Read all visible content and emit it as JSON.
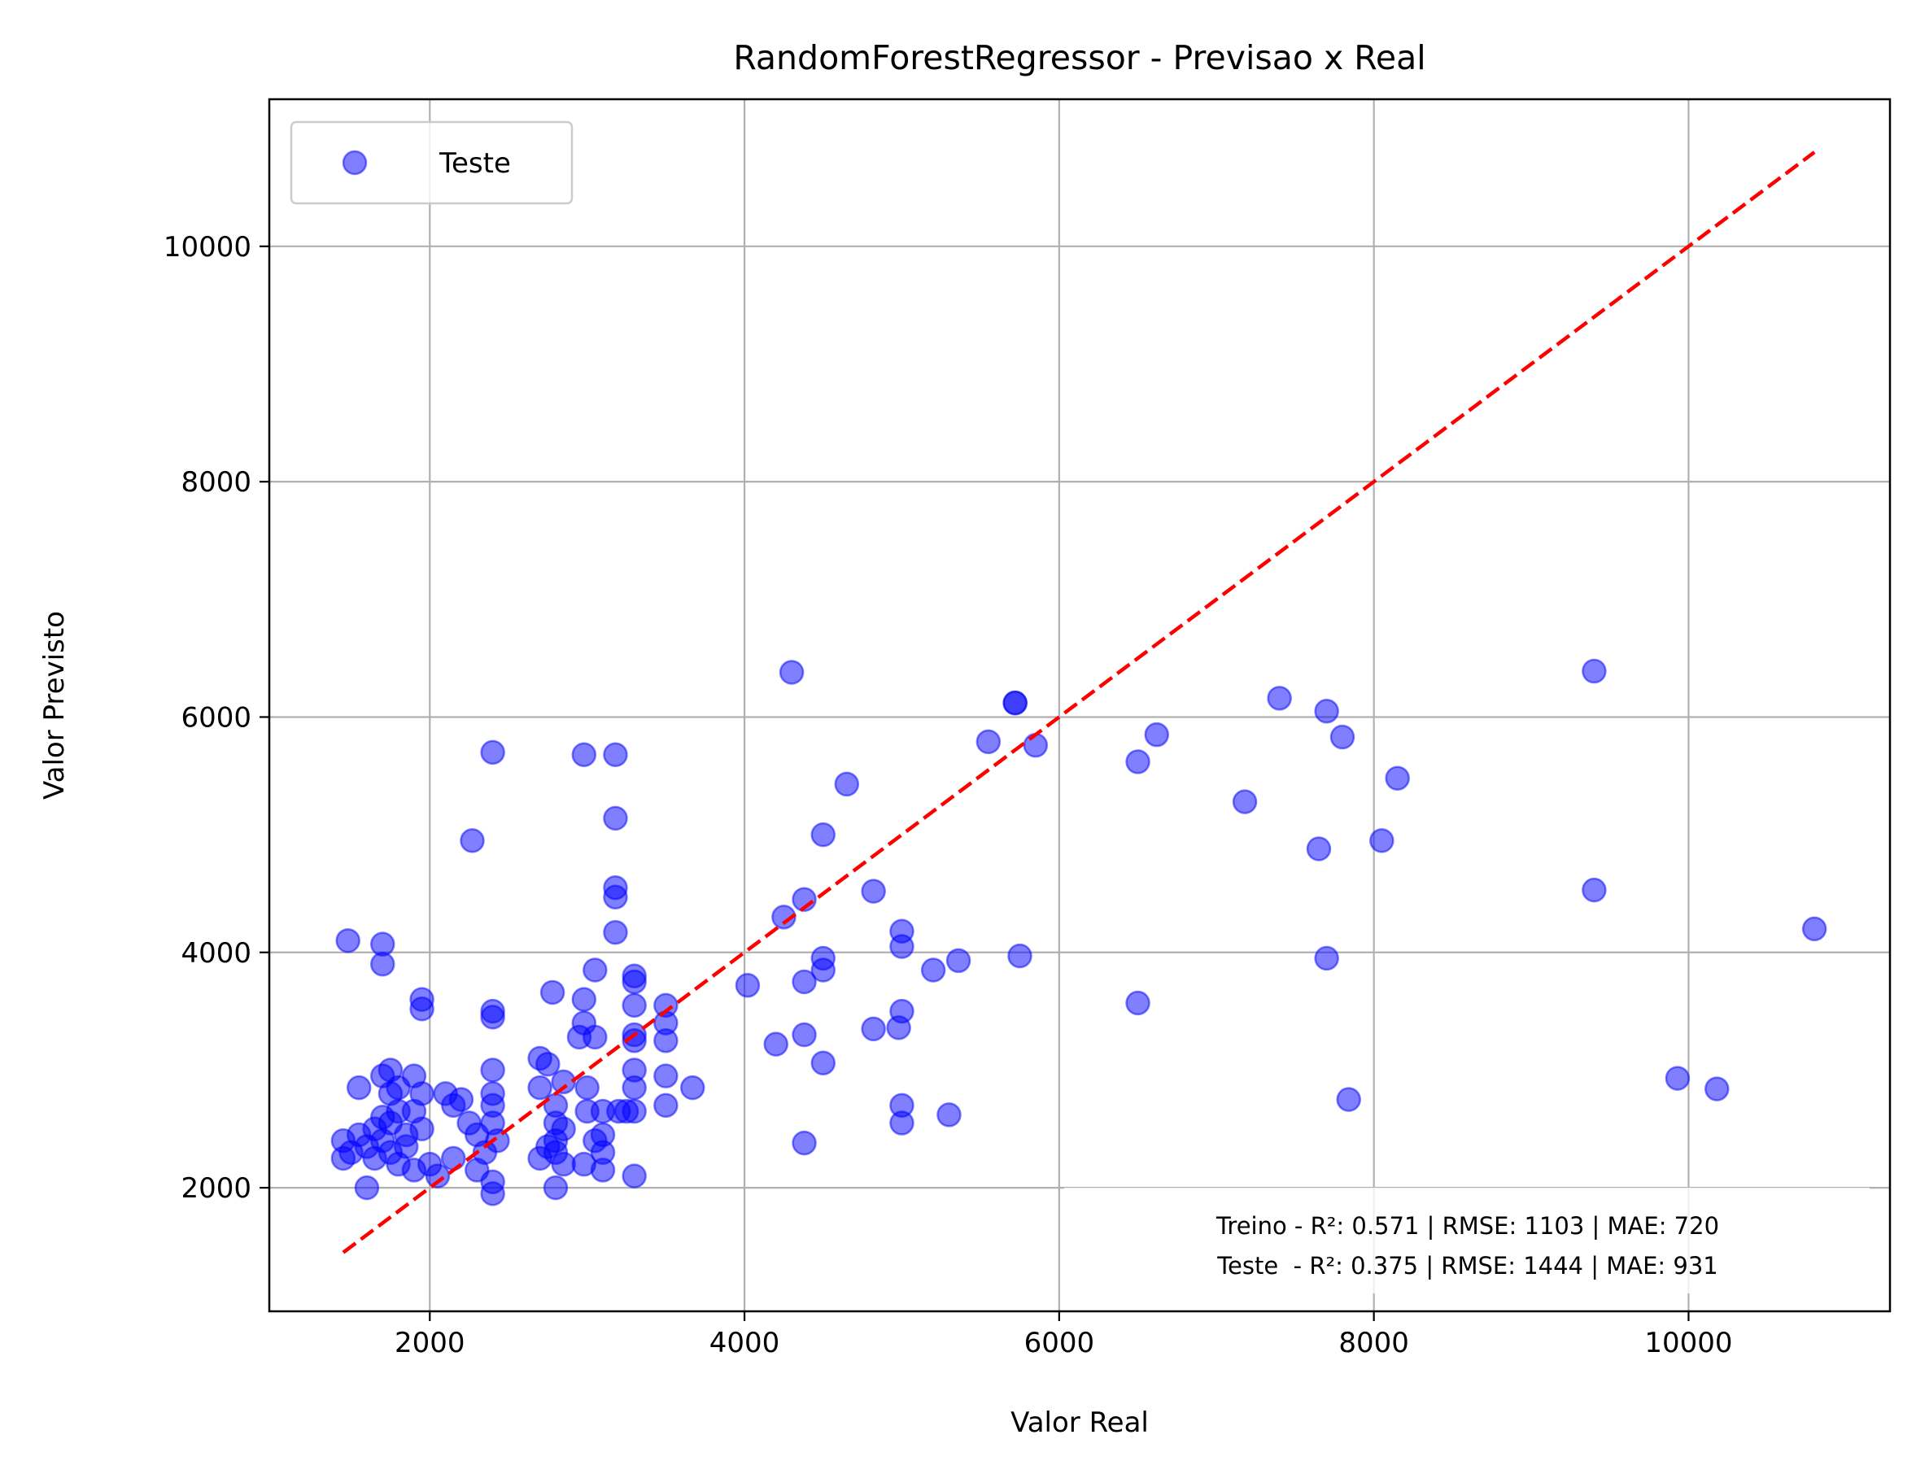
{
  "chart_data": {
    "type": "scatter",
    "title": "RandomForestRegressor - Previsao x Real",
    "xlabel": "Valor Real",
    "ylabel": "Valor Previsto",
    "xlim": [
      980,
      11280
    ],
    "ylim": [
      950,
      11250
    ],
    "xticks": [
      2000,
      4000,
      6000,
      8000,
      10000
    ],
    "yticks": [
      2000,
      4000,
      6000,
      8000,
      10000
    ],
    "grid": true,
    "legend": {
      "position": "top-left",
      "entries": [
        "Teste"
      ]
    },
    "colors": {
      "points": "#0000ff",
      "reference_line": "#ff0000",
      "grid": "#b0b0b0"
    },
    "annotation": [
      "Treino - R²: 0.571 | RMSE: 1103 | MAE: 720",
      "Teste  - R²: 0.375 | RMSE: 1444 | MAE: 931"
    ],
    "reference_line": {
      "x": [
        1450,
        10800
      ],
      "y": [
        1450,
        10800
      ],
      "style": "dashed"
    },
    "series": [
      {
        "name": "Teste",
        "points": [
          [
            1450,
            2250
          ],
          [
            1450,
            2400
          ],
          [
            1480,
            4100
          ],
          [
            1500,
            2300
          ],
          [
            1550,
            2450
          ],
          [
            1550,
            2850
          ],
          [
            1600,
            2000
          ],
          [
            1600,
            2350
          ],
          [
            1650,
            2500
          ],
          [
            1650,
            2250
          ],
          [
            1700,
            2950
          ],
          [
            1700,
            2600
          ],
          [
            1700,
            2400
          ],
          [
            1700,
            4070
          ],
          [
            1700,
            3900
          ],
          [
            1750,
            2300
          ],
          [
            1750,
            2800
          ],
          [
            1750,
            3000
          ],
          [
            1750,
            2550
          ],
          [
            1800,
            2200
          ],
          [
            1800,
            2850
          ],
          [
            1800,
            2650
          ],
          [
            1850,
            2350
          ],
          [
            1850,
            2450
          ],
          [
            1900,
            2150
          ],
          [
            1900,
            2650
          ],
          [
            1900,
            2950
          ],
          [
            1950,
            3600
          ],
          [
            1950,
            3520
          ],
          [
            1950,
            2800
          ],
          [
            1950,
            2500
          ],
          [
            2000,
            2200
          ],
          [
            2050,
            2100
          ],
          [
            2100,
            2800
          ],
          [
            2150,
            2700
          ],
          [
            2150,
            2250
          ],
          [
            2200,
            2750
          ],
          [
            2250,
            2550
          ],
          [
            2300,
            2450
          ],
          [
            2300,
            2150
          ],
          [
            2350,
            2300
          ],
          [
            2400,
            2050
          ],
          [
            2400,
            1950
          ],
          [
            2400,
            2550
          ],
          [
            2400,
            2800
          ],
          [
            2400,
            2700
          ],
          [
            2400,
            3000
          ],
          [
            2400,
            3450
          ],
          [
            2400,
            3500
          ],
          [
            2400,
            5700
          ],
          [
            2270,
            4950
          ],
          [
            2430,
            2400
          ],
          [
            2700,
            3100
          ],
          [
            2700,
            2850
          ],
          [
            2700,
            2250
          ],
          [
            2750,
            2350
          ],
          [
            2750,
            3050
          ],
          [
            2780,
            3660
          ],
          [
            2800,
            2700
          ],
          [
            2800,
            2550
          ],
          [
            2800,
            2400
          ],
          [
            2800,
            2300
          ],
          [
            2800,
            2000
          ],
          [
            2850,
            2900
          ],
          [
            2850,
            2500
          ],
          [
            2850,
            2200
          ],
          [
            2950,
            3280
          ],
          [
            2980,
            3600
          ],
          [
            2980,
            3400
          ],
          [
            2980,
            2200
          ],
          [
            2980,
            5680
          ],
          [
            3000,
            2850
          ],
          [
            3000,
            2650
          ],
          [
            3050,
            3850
          ],
          [
            3050,
            3280
          ],
          [
            3050,
            2400
          ],
          [
            3100,
            2650
          ],
          [
            3100,
            2450
          ],
          [
            3100,
            2300
          ],
          [
            3100,
            2150
          ],
          [
            3180,
            5680
          ],
          [
            3180,
            5140
          ],
          [
            3180,
            4550
          ],
          [
            3180,
            4470
          ],
          [
            3180,
            4170
          ],
          [
            3200,
            2650
          ],
          [
            3250,
            2650
          ],
          [
            3300,
            3800
          ],
          [
            3300,
            3750
          ],
          [
            3300,
            3550
          ],
          [
            3300,
            3300
          ],
          [
            3300,
            3250
          ],
          [
            3300,
            3000
          ],
          [
            3300,
            2850
          ],
          [
            3300,
            2650
          ],
          [
            3300,
            2100
          ],
          [
            3500,
            3550
          ],
          [
            3500,
            3400
          ],
          [
            3500,
            3250
          ],
          [
            3500,
            2950
          ],
          [
            3500,
            2700
          ],
          [
            3670,
            2850
          ],
          [
            4020,
            3720
          ],
          [
            4200,
            3220
          ],
          [
            4250,
            4300
          ],
          [
            4300,
            6380
          ],
          [
            4380,
            4450
          ],
          [
            4380,
            3750
          ],
          [
            4380,
            3300
          ],
          [
            4380,
            2380
          ],
          [
            4500,
            3950
          ],
          [
            4500,
            3850
          ],
          [
            4500,
            3060
          ],
          [
            4500,
            5000
          ],
          [
            4650,
            5430
          ],
          [
            4820,
            4520
          ],
          [
            4820,
            3350
          ],
          [
            4980,
            3360
          ],
          [
            5000,
            4180
          ],
          [
            5000,
            4050
          ],
          [
            5000,
            3500
          ],
          [
            5000,
            2700
          ],
          [
            5000,
            2550
          ],
          [
            5200,
            3850
          ],
          [
            5300,
            2620
          ],
          [
            5360,
            3930
          ],
          [
            5550,
            5790
          ],
          [
            5720,
            6120
          ],
          [
            5720,
            6120
          ],
          [
            5750,
            3970
          ],
          [
            5850,
            5760
          ],
          [
            6500,
            3570
          ],
          [
            6500,
            5620
          ],
          [
            6620,
            5850
          ],
          [
            7180,
            5280
          ],
          [
            7400,
            6160
          ],
          [
            7650,
            4880
          ],
          [
            7700,
            6050
          ],
          [
            7700,
            3950
          ],
          [
            7800,
            5830
          ],
          [
            7840,
            2750
          ],
          [
            8050,
            4950
          ],
          [
            8150,
            5480
          ],
          [
            9400,
            6390
          ],
          [
            9400,
            4530
          ],
          [
            9930,
            2930
          ],
          [
            10180,
            2840
          ],
          [
            10800,
            4200
          ]
        ]
      }
    ]
  }
}
